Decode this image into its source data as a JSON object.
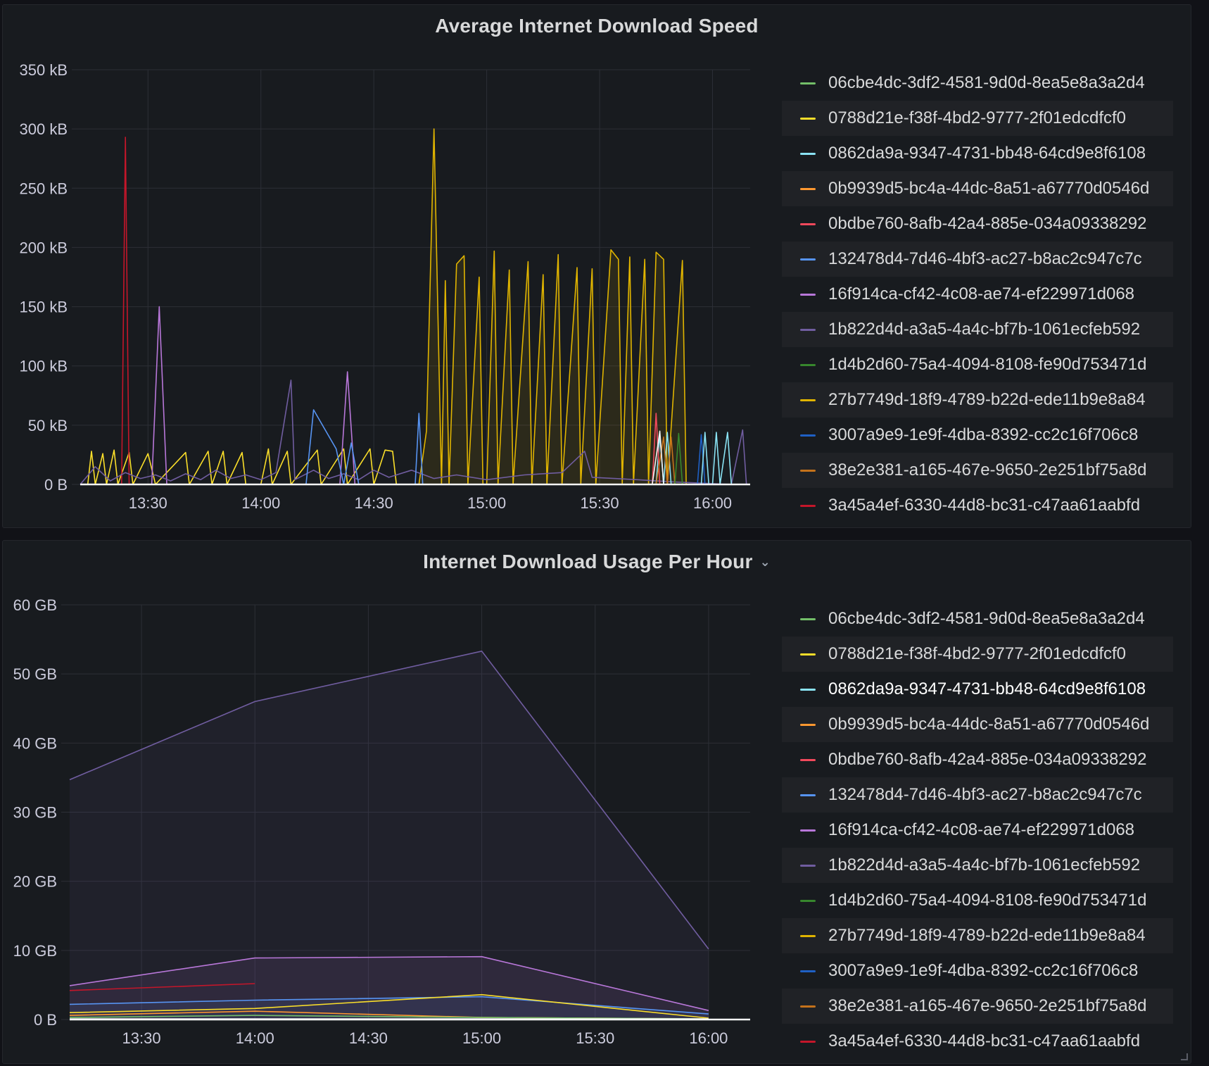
{
  "legend_series": [
    {
      "name": "06cbe4dc-3df2-4581-9d0d-8ea5e8a3a2d4",
      "color": "#73bf69"
    },
    {
      "name": "0788d21e-f38f-4bd2-9777-2f01edcdfcf0",
      "color": "#fade2a"
    },
    {
      "name": "0862da9a-9347-4731-bb48-64cd9e8f6108",
      "color": "#8ae3f4"
    },
    {
      "name": "0b9939d5-bc4a-44dc-8a51-a67770d0546d",
      "color": "#ff9830"
    },
    {
      "name": "0bdbe760-8afb-42a4-885e-034a09338292",
      "color": "#f2495c"
    },
    {
      "name": "132478d4-7d46-4bf3-ac27-b8ac2c947c7c",
      "color": "#5794f2"
    },
    {
      "name": "16f914ca-cf42-4c08-ae74-ef229971d068",
      "color": "#b877d9"
    },
    {
      "name": "1b822d4d-a3a5-4a4c-bf7b-1061ecfeb592",
      "color": "#705da0"
    },
    {
      "name": "1d4b2d60-75a4-4094-8108-fe90d753471d",
      "color": "#37872d"
    },
    {
      "name": "27b7749d-18f9-4789-b22d-ede11b9e8a84",
      "color": "#e0b400"
    },
    {
      "name": "3007a9e9-1e9f-4dba-8392-cc2c16f706c8",
      "color": "#1f60c4"
    },
    {
      "name": "38e2e381-a165-467e-9650-2e251bf75a8d",
      "color": "#c4721b"
    },
    {
      "name": "3a45a4ef-6330-44d8-bc31-c47aa61aabfd",
      "color": "#c4162a"
    }
  ],
  "chart_data": [
    {
      "type": "line",
      "title": "Average Internet Download Speed",
      "unit": "kB",
      "xlabel": "",
      "ylabel": "",
      "x_ticks": [
        "13:30",
        "14:00",
        "14:30",
        "15:00",
        "15:30",
        "16:00"
      ],
      "y_ticks": [
        "0 B",
        "50 kB",
        "100 kB",
        "150 kB",
        "200 kB",
        "250 kB",
        "300 kB",
        "350 kB"
      ],
      "xlim": [
        "13:12",
        "16:10"
      ],
      "ylim": [
        0,
        350
      ],
      "grid": true,
      "legend_position": "right",
      "series": [
        {
          "key": "0788d21e",
          "color": "#fade2a",
          "fill": false,
          "points": [
            [
              "13:14",
              0
            ],
            [
              "13:15",
              28
            ],
            [
              "13:16",
              0
            ],
            [
              "13:18",
              26
            ],
            [
              "13:19",
              0
            ],
            [
              "13:21",
              29
            ],
            [
              "13:22",
              0
            ],
            [
              "13:25",
              27
            ],
            [
              "13:26",
              0
            ],
            [
              "13:30",
              26
            ],
            [
              "13:32",
              0
            ],
            [
              "13:40",
              27
            ],
            [
              "13:41",
              0
            ],
            [
              "13:46",
              28
            ],
            [
              "13:47",
              0
            ],
            [
              "13:50",
              28
            ],
            [
              "13:51",
              0
            ],
            [
              "13:55",
              27
            ],
            [
              "13:56",
              0
            ],
            [
              "14:00",
              0
            ],
            [
              "14:02",
              30
            ],
            [
              "14:03",
              0
            ],
            [
              "14:07",
              28
            ],
            [
              "14:08",
              0
            ],
            [
              "14:15",
              29
            ],
            [
              "14:16",
              0
            ],
            [
              "14:22",
              30
            ],
            [
              "14:23",
              0
            ],
            [
              "14:29",
              30
            ],
            [
              "14:30",
              0
            ],
            [
              "14:33",
              29
            ],
            [
              "14:35",
              28
            ],
            [
              "14:36",
              0
            ]
          ]
        },
        {
          "key": "27b7749d",
          "color": "#e0b400",
          "fill": true,
          "points": [
            [
              "14:42",
              0
            ],
            [
              "14:44",
              45
            ],
            [
              "14:46",
              300
            ],
            [
              "14:48",
              0
            ],
            [
              "14:49",
              172
            ],
            [
              "14:50",
              0
            ],
            [
              "14:52",
              186
            ],
            [
              "14:54",
              193
            ],
            [
              "14:55",
              0
            ],
            [
              "14:58",
              175
            ],
            [
              "14:59",
              0
            ],
            [
              "15:00",
              0
            ],
            [
              "15:02",
              197
            ],
            [
              "15:03",
              0
            ],
            [
              "15:06",
              181
            ],
            [
              "15:07",
              0
            ],
            [
              "15:11",
              188
            ],
            [
              "15:12",
              0
            ],
            [
              "15:15",
              177
            ],
            [
              "15:16",
              0
            ],
            [
              "15:19",
              194
            ],
            [
              "15:20",
              0
            ],
            [
              "15:24",
              183
            ],
            [
              "15:25",
              0
            ],
            [
              "15:28",
              182
            ],
            [
              "15:29",
              0
            ],
            [
              "15:33",
              198
            ],
            [
              "15:35",
              190
            ],
            [
              "15:36",
              0
            ],
            [
              "15:38",
              192
            ],
            [
              "15:39",
              0
            ],
            [
              "15:42",
              190
            ],
            [
              "15:43",
              0
            ],
            [
              "15:45",
              196
            ],
            [
              "15:47",
              190
            ],
            [
              "15:48",
              0
            ],
            [
              "15:52",
              189
            ],
            [
              "15:53",
              0
            ]
          ]
        },
        {
          "key": "3a45a4ef",
          "color": "#c4162a",
          "fill": false,
          "points": [
            [
              "13:23",
              0
            ],
            [
              "13:24",
              293
            ],
            [
              "13:25",
              0
            ],
            [
              "13:26",
              0
            ]
          ]
        },
        {
          "key": "16f914ca",
          "color": "#b877d9",
          "fill": false,
          "points": [
            [
              "13:31",
              0
            ],
            [
              "13:33",
              150
            ],
            [
              "13:35",
              0
            ],
            [
              "14:21",
              0
            ],
            [
              "14:23",
              95
            ],
            [
              "14:25",
              0
            ]
          ]
        },
        {
          "key": "1b822d4d",
          "color": "#705da0",
          "fill": false,
          "points": [
            [
              "13:12",
              0
            ],
            [
              "13:16",
              15
            ],
            [
              "13:20",
              3
            ],
            [
              "13:24",
              10
            ],
            [
              "13:28",
              5
            ],
            [
              "13:32",
              8
            ],
            [
              "13:36",
              3
            ],
            [
              "13:40",
              9
            ],
            [
              "13:44",
              4
            ],
            [
              "13:48",
              12
            ],
            [
              "13:52",
              5
            ],
            [
              "13:56",
              8
            ],
            [
              "14:00",
              4
            ],
            [
              "14:04",
              10
            ],
            [
              "14:08",
              88
            ],
            [
              "14:09",
              4
            ],
            [
              "14:14",
              12
            ],
            [
              "14:18",
              5
            ],
            [
              "14:22",
              9
            ],
            [
              "14:26",
              4
            ],
            [
              "14:30",
              12
            ],
            [
              "14:34",
              6
            ],
            [
              "14:40",
              12
            ],
            [
              "14:46",
              5
            ],
            [
              "14:52",
              8
            ],
            [
              "15:00",
              4
            ],
            [
              "15:10",
              8
            ],
            [
              "15:20",
              10
            ],
            [
              "15:26",
              28
            ],
            [
              "15:28",
              6
            ],
            [
              "15:40",
              4
            ],
            [
              "15:50",
              2
            ],
            [
              "16:05",
              0
            ],
            [
              "16:08",
              46
            ],
            [
              "16:09",
              0
            ]
          ]
        },
        {
          "key": "132478d4",
          "color": "#5794f2",
          "fill": false,
          "points": [
            [
              "14:12",
              0
            ],
            [
              "14:14",
              63
            ],
            [
              "14:20",
              30
            ],
            [
              "14:22",
              0
            ],
            [
              "14:24",
              35
            ],
            [
              "14:26",
              0
            ],
            [
              "14:41",
              0
            ],
            [
              "14:42",
              60
            ],
            [
              "14:43",
              0
            ]
          ]
        },
        {
          "key": "3007a9e9",
          "color": "#1f60c4",
          "fill": false,
          "points": [
            [
              "15:56",
              0
            ],
            [
              "15:57",
              42
            ],
            [
              "15:58",
              0
            ]
          ]
        },
        {
          "key": "0862da9a",
          "color": "#8ae3f4",
          "fill": false,
          "points": [
            [
              "15:45",
              0
            ],
            [
              "15:46",
              42
            ],
            [
              "15:47",
              0
            ],
            [
              "15:48",
              44
            ],
            [
              "15:49",
              0
            ],
            [
              "15:57",
              0
            ],
            [
              "15:58",
              44
            ],
            [
              "15:59",
              0
            ],
            [
              "16:00",
              0
            ],
            [
              "16:01",
              44
            ],
            [
              "16:02",
              0
            ],
            [
              "16:04",
              44
            ],
            [
              "16:05",
              0
            ]
          ]
        },
        {
          "key": "0bdbe760",
          "color": "#f2495c",
          "fill": false,
          "points": [
            [
              "15:44",
              0
            ],
            [
              "15:45",
              60
            ],
            [
              "15:46",
              0
            ]
          ]
        },
        {
          "key": "38e2e381",
          "color": "#c4721b",
          "fill": false,
          "points": [
            [
              "15:45",
              0
            ],
            [
              "15:47",
              40
            ],
            [
              "15:48",
              0
            ],
            [
              "15:49",
              40
            ],
            [
              "15:50",
              0
            ]
          ]
        },
        {
          "key": "1d4b2d60",
          "color": "#37872d",
          "fill": false,
          "points": [
            [
              "15:50",
              0
            ],
            [
              "15:51",
              43
            ],
            [
              "15:52",
              0
            ]
          ]
        },
        {
          "key": "white",
          "color": "#f4f5f5",
          "fill": false,
          "points": [
            [
              "13:12",
              0
            ],
            [
              "15:44",
              0
            ],
            [
              "15:46",
              45
            ],
            [
              "15:47",
              0
            ],
            [
              "16:08",
              0
            ]
          ]
        }
      ]
    },
    {
      "type": "line",
      "title": "Internet Download Usage Per Hour",
      "unit": "GB",
      "xlabel": "",
      "ylabel": "",
      "x_ticks": [
        "13:30",
        "14:00",
        "14:30",
        "15:00",
        "15:30",
        "16:00"
      ],
      "y_ticks": [
        "0 B",
        "10 GB",
        "20 GB",
        "30 GB",
        "40 GB",
        "50 GB",
        "60 GB"
      ],
      "xlim": [
        "13:11",
        "16:11"
      ],
      "ylim": [
        0,
        60
      ],
      "grid": true,
      "legend_position": "right",
      "series": [
        {
          "key": "1b822d4d",
          "color": "#705da0",
          "fill": true,
          "points": [
            [
              "13:11",
              34.7
            ],
            [
              "14:00",
              46
            ],
            [
              "15:00",
              53.3
            ],
            [
              "16:00",
              10.2
            ]
          ]
        },
        {
          "key": "16f914ca",
          "color": "#b877d9",
          "fill": true,
          "points": [
            [
              "13:11",
              4.9
            ],
            [
              "14:00",
              8.9
            ],
            [
              "15:00",
              9.1
            ],
            [
              "16:00",
              1.3
            ]
          ]
        },
        {
          "key": "3a45a4ef",
          "color": "#c4162a",
          "fill": false,
          "points": [
            [
              "13:11",
              4.2
            ],
            [
              "14:00",
              5.2
            ]
          ]
        },
        {
          "key": "132478d4",
          "color": "#5794f2",
          "fill": true,
          "points": [
            [
              "13:11",
              2.2
            ],
            [
              "14:00",
              2.8
            ],
            [
              "15:00",
              3.3
            ],
            [
              "16:00",
              0.8
            ]
          ]
        },
        {
          "key": "0788d21e",
          "color": "#fade2a",
          "fill": false,
          "points": [
            [
              "13:11",
              1.0
            ],
            [
              "14:00",
              1.6
            ],
            [
              "15:00",
              3.6
            ],
            [
              "16:00",
              0.2
            ]
          ]
        },
        {
          "key": "0b9939d5",
          "color": "#ff9830",
          "fill": false,
          "points": [
            [
              "13:11",
              0.6
            ],
            [
              "14:00",
              1.2
            ],
            [
              "15:00",
              0.3
            ],
            [
              "16:00",
              0.1
            ]
          ]
        },
        {
          "key": "06cbe4dc",
          "color": "#73bf69",
          "fill": false,
          "points": [
            [
              "13:11",
              0.3
            ],
            [
              "14:00",
              0.6
            ],
            [
              "15:00",
              0.3
            ],
            [
              "16:00",
              0.1
            ]
          ]
        },
        {
          "key": "white",
          "color": "#f4f5f5",
          "fill": false,
          "points": [
            [
              "13:11",
              0.1
            ],
            [
              "14:00",
              0.1
            ],
            [
              "15:00",
              0.1
            ],
            [
              "16:00",
              0.1
            ]
          ]
        }
      ]
    }
  ]
}
